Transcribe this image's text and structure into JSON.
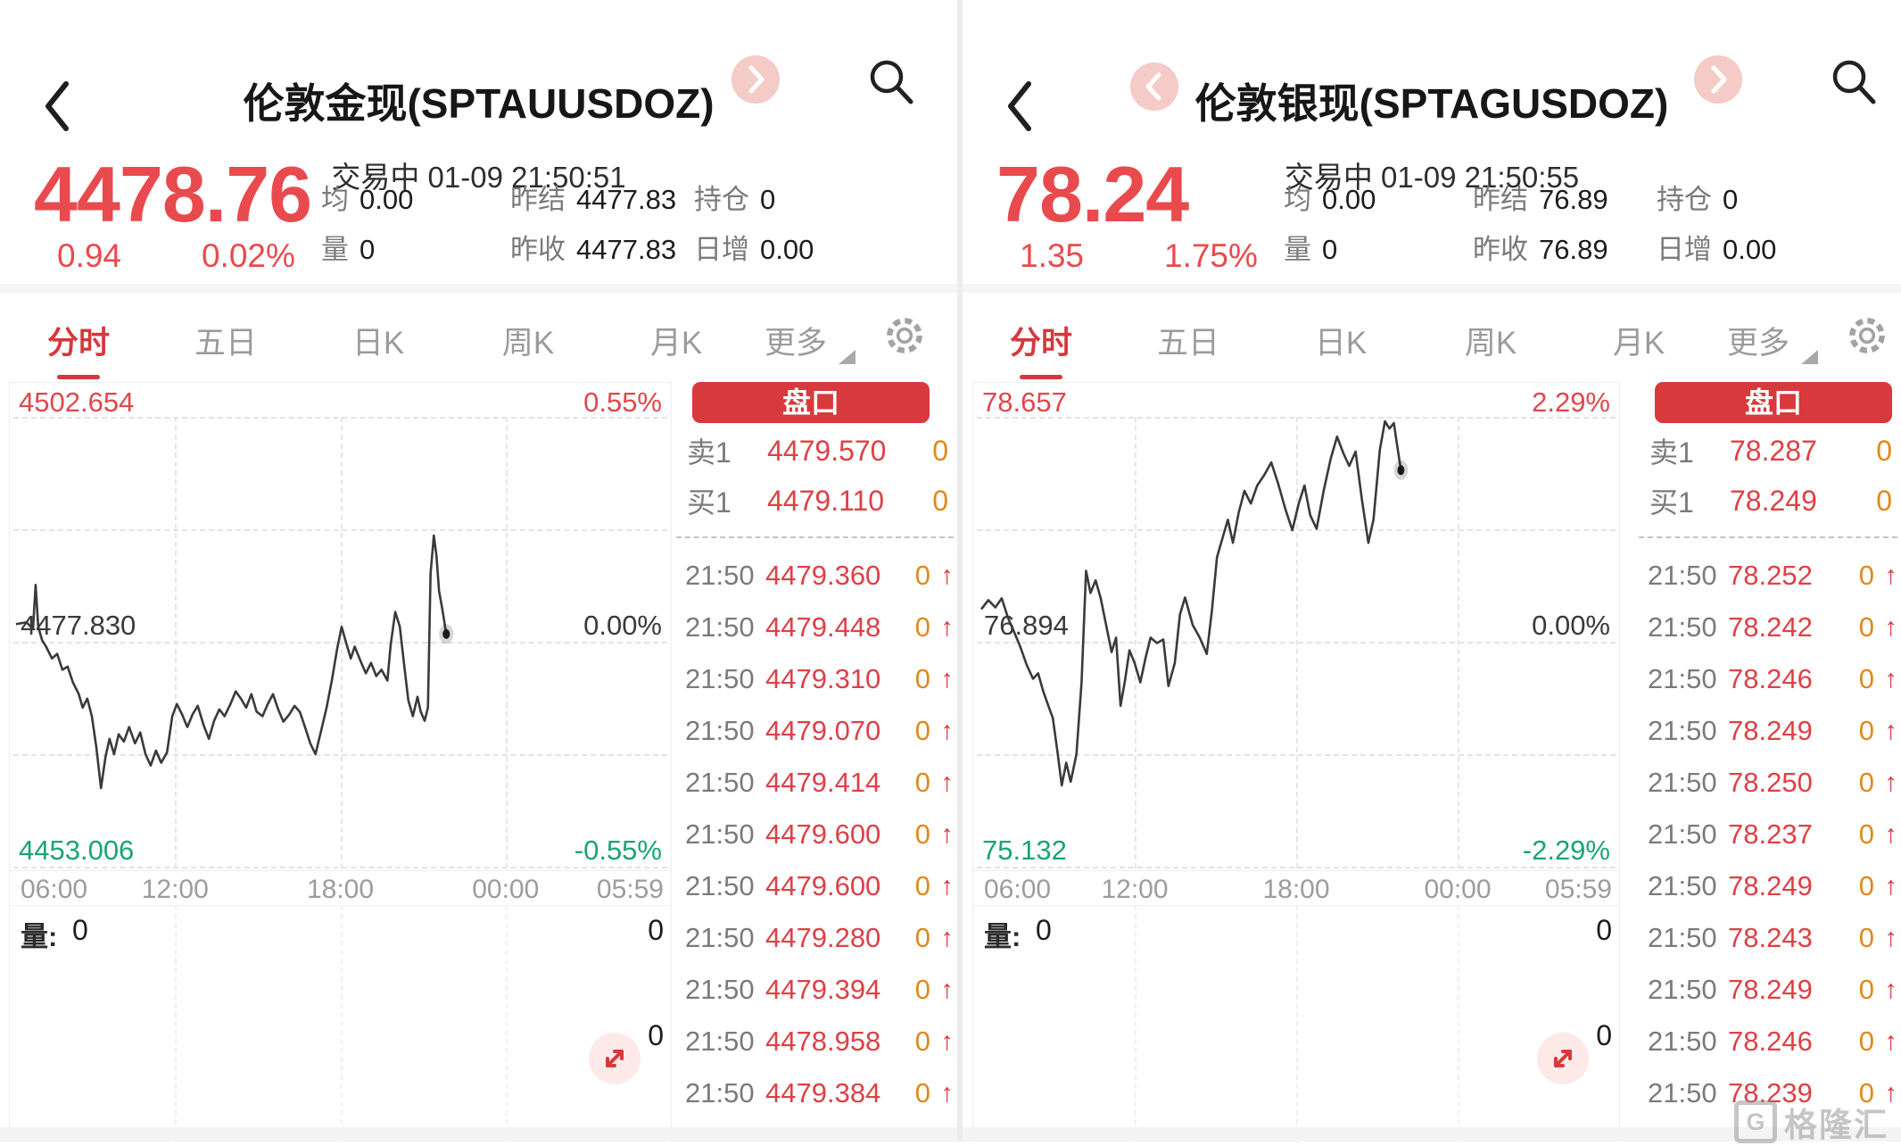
{
  "watermark": {
    "logo_letter": "G",
    "brand": "格隆汇"
  },
  "panels": [
    {
      "title": "伦敦金现(SPTAUUSDOZ)",
      "status": "交易中 01-09 21:50:51",
      "price": "4478.76",
      "change": "0.94",
      "change_pct": "0.02%",
      "stats": {
        "avg_label": "均",
        "avg": "0.00",
        "vol_label": "量",
        "vol": "0",
        "prev_settle_label": "昨结",
        "prev_settle": "4477.83",
        "prev_close_label": "昨收",
        "prev_close": "4477.83",
        "open_interest_label": "持仓",
        "open_interest": "0",
        "daily_add_label": "日增",
        "daily_add": "0.00"
      },
      "tabs": [
        "分时",
        "五日",
        "日K",
        "周K",
        "月K",
        "更多"
      ],
      "chart": {
        "high": "4502.654",
        "high_pct": "0.55%",
        "mid": "4477.830",
        "mid_pct": "0.00%",
        "low": "4453.006",
        "low_pct": "-0.55%",
        "times": [
          "06:00",
          "12:00",
          "18:00",
          "00:00",
          "05:59"
        ],
        "vol_label": "量:",
        "vol_value": "0",
        "vol_axis_top": "0",
        "vol_axis_bottom": "0",
        "line_points": [
          [
            0.004,
            0.459
          ],
          [
            0.02,
            0.455
          ],
          [
            0.03,
            0.47
          ],
          [
            0.034,
            0.372
          ],
          [
            0.038,
            0.465
          ],
          [
            0.044,
            0.495
          ],
          [
            0.05,
            0.509
          ],
          [
            0.059,
            0.535
          ],
          [
            0.067,
            0.525
          ],
          [
            0.075,
            0.56
          ],
          [
            0.083,
            0.553
          ],
          [
            0.091,
            0.588
          ],
          [
            0.1,
            0.614
          ],
          [
            0.106,
            0.644
          ],
          [
            0.113,
            0.624
          ],
          [
            0.12,
            0.663
          ],
          [
            0.127,
            0.733
          ],
          [
            0.134,
            0.822
          ],
          [
            0.141,
            0.752
          ],
          [
            0.147,
            0.713
          ],
          [
            0.154,
            0.747
          ],
          [
            0.161,
            0.703
          ],
          [
            0.169,
            0.719
          ],
          [
            0.177,
            0.687
          ],
          [
            0.186,
            0.723
          ],
          [
            0.194,
            0.699
          ],
          [
            0.202,
            0.747
          ],
          [
            0.21,
            0.772
          ],
          [
            0.218,
            0.739
          ],
          [
            0.226,
            0.766
          ],
          [
            0.235,
            0.743
          ],
          [
            0.243,
            0.663
          ],
          [
            0.25,
            0.636
          ],
          [
            0.258,
            0.659
          ],
          [
            0.266,
            0.687
          ],
          [
            0.274,
            0.659
          ],
          [
            0.282,
            0.64
          ],
          [
            0.291,
            0.683
          ],
          [
            0.299,
            0.713
          ],
          [
            0.307,
            0.673
          ],
          [
            0.315,
            0.648
          ],
          [
            0.323,
            0.663
          ],
          [
            0.332,
            0.636
          ],
          [
            0.34,
            0.608
          ],
          [
            0.348,
            0.624
          ],
          [
            0.356,
            0.644
          ],
          [
            0.364,
            0.614
          ],
          [
            0.372,
            0.653
          ],
          [
            0.381,
            0.663
          ],
          [
            0.389,
            0.636
          ],
          [
            0.397,
            0.614
          ],
          [
            0.405,
            0.648
          ],
          [
            0.413,
            0.675
          ],
          [
            0.422,
            0.659
          ],
          [
            0.43,
            0.64
          ],
          [
            0.438,
            0.653
          ],
          [
            0.446,
            0.687
          ],
          [
            0.454,
            0.723
          ],
          [
            0.462,
            0.747
          ],
          [
            0.471,
            0.693
          ],
          [
            0.479,
            0.644
          ],
          [
            0.487,
            0.584
          ],
          [
            0.495,
            0.515
          ],
          [
            0.502,
            0.465
          ],
          [
            0.509,
            0.501
          ],
          [
            0.516,
            0.535
          ],
          [
            0.522,
            0.509
          ],
          [
            0.531,
            0.541
          ],
          [
            0.539,
            0.568
          ],
          [
            0.547,
            0.545
          ],
          [
            0.555,
            0.574
          ],
          [
            0.563,
            0.56
          ],
          [
            0.572,
            0.584
          ],
          [
            0.577,
            0.505
          ],
          [
            0.584,
            0.432
          ],
          [
            0.591,
            0.465
          ],
          [
            0.598,
            0.554
          ],
          [
            0.604,
            0.628
          ],
          [
            0.611,
            0.663
          ],
          [
            0.618,
            0.62
          ],
          [
            0.623,
            0.653
          ],
          [
            0.629,
            0.673
          ],
          [
            0.634,
            0.644
          ],
          [
            0.638,
            0.347
          ],
          [
            0.643,
            0.263
          ],
          [
            0.647,
            0.307
          ],
          [
            0.651,
            0.386
          ],
          [
            0.656,
            0.426
          ],
          [
            0.662,
            0.481
          ]
        ]
      },
      "orderbook": {
        "title": "盘口",
        "ask_label": "卖1",
        "ask_price": "4479.570",
        "ask_qty": "0",
        "bid_label": "买1",
        "bid_price": "4479.110",
        "bid_qty": "0",
        "arrow": "↑",
        "ticks": [
          {
            "t": "21:50",
            "p": "4479.360",
            "v": "0"
          },
          {
            "t": "21:50",
            "p": "4479.448",
            "v": "0"
          },
          {
            "t": "21:50",
            "p": "4479.310",
            "v": "0"
          },
          {
            "t": "21:50",
            "p": "4479.070",
            "v": "0"
          },
          {
            "t": "21:50",
            "p": "4479.414",
            "v": "0"
          },
          {
            "t": "21:50",
            "p": "4479.600",
            "v": "0"
          },
          {
            "t": "21:50",
            "p": "4479.600",
            "v": "0"
          },
          {
            "t": "21:50",
            "p": "4479.280",
            "v": "0"
          },
          {
            "t": "21:50",
            "p": "4479.394",
            "v": "0"
          },
          {
            "t": "21:50",
            "p": "4478.958",
            "v": "0"
          },
          {
            "t": "21:50",
            "p": "4479.384",
            "v": "0"
          }
        ]
      }
    },
    {
      "title": "伦敦银现(SPTAGUSDOZ)",
      "status": "交易中 01-09 21:50:55",
      "price": "78.24",
      "change": "1.35",
      "change_pct": "1.75%",
      "stats": {
        "avg_label": "均",
        "avg": "0.00",
        "vol_label": "量",
        "vol": "0",
        "prev_settle_label": "昨结",
        "prev_settle": "76.89",
        "prev_close_label": "昨收",
        "prev_close": "76.89",
        "open_interest_label": "持仓",
        "open_interest": "0",
        "daily_add_label": "日增",
        "daily_add": "0.00"
      },
      "tabs": [
        "分时",
        "五日",
        "日K",
        "周K",
        "月K",
        "更多"
      ],
      "chart": {
        "high": "78.657",
        "high_pct": "2.29%",
        "mid": "76.894",
        "mid_pct": "0.00%",
        "low": "75.132",
        "low_pct": "-2.29%",
        "times": [
          "06:00",
          "12:00",
          "18:00",
          "00:00",
          "05:59"
        ],
        "vol_label": "量:",
        "vol_value": "0",
        "vol_axis_top": "0",
        "vol_axis_bottom": "0",
        "line_points": [
          [
            0.007,
            0.426
          ],
          [
            0.018,
            0.406
          ],
          [
            0.029,
            0.422
          ],
          [
            0.039,
            0.402
          ],
          [
            0.049,
            0.446
          ],
          [
            0.058,
            0.475
          ],
          [
            0.068,
            0.509
          ],
          [
            0.078,
            0.549
          ],
          [
            0.088,
            0.58
          ],
          [
            0.096,
            0.568
          ],
          [
            0.104,
            0.608
          ],
          [
            0.113,
            0.644
          ],
          [
            0.119,
            0.667
          ],
          [
            0.126,
            0.739
          ],
          [
            0.133,
            0.816
          ],
          [
            0.14,
            0.766
          ],
          [
            0.147,
            0.808
          ],
          [
            0.156,
            0.747
          ],
          [
            0.164,
            0.588
          ],
          [
            0.171,
            0.341
          ],
          [
            0.178,
            0.39
          ],
          [
            0.186,
            0.362
          ],
          [
            0.194,
            0.402
          ],
          [
            0.203,
            0.465
          ],
          [
            0.211,
            0.521
          ],
          [
            0.218,
            0.489
          ],
          [
            0.225,
            0.64
          ],
          [
            0.232,
            0.584
          ],
          [
            0.239,
            0.517
          ],
          [
            0.247,
            0.545
          ],
          [
            0.256,
            0.588
          ],
          [
            0.264,
            0.535
          ],
          [
            0.272,
            0.489
          ],
          [
            0.282,
            0.501
          ],
          [
            0.292,
            0.493
          ],
          [
            0.3,
            0.596
          ],
          [
            0.31,
            0.545
          ],
          [
            0.318,
            0.438
          ],
          [
            0.326,
            0.4
          ],
          [
            0.338,
            0.461
          ],
          [
            0.349,
            0.489
          ],
          [
            0.36,
            0.525
          ],
          [
            0.368,
            0.43
          ],
          [
            0.376,
            0.311
          ],
          [
            0.385,
            0.267
          ],
          [
            0.393,
            0.228
          ],
          [
            0.401,
            0.279
          ],
          [
            0.41,
            0.212
          ],
          [
            0.419,
            0.164
          ],
          [
            0.429,
            0.192
          ],
          [
            0.439,
            0.152
          ],
          [
            0.45,
            0.129
          ],
          [
            0.461,
            0.101
          ],
          [
            0.472,
            0.149
          ],
          [
            0.483,
            0.204
          ],
          [
            0.494,
            0.251
          ],
          [
            0.504,
            0.192
          ],
          [
            0.513,
            0.152
          ],
          [
            0.522,
            0.218
          ],
          [
            0.532,
            0.248
          ],
          [
            0.543,
            0.164
          ],
          [
            0.554,
            0.093
          ],
          [
            0.564,
            0.044
          ],
          [
            0.574,
            0.081
          ],
          [
            0.583,
            0.109
          ],
          [
            0.593,
            0.077
          ],
          [
            0.603,
            0.184
          ],
          [
            0.613,
            0.279
          ],
          [
            0.621,
            0.228
          ],
          [
            0.631,
            0.073
          ],
          [
            0.639,
            0.01
          ],
          [
            0.646,
            0.026
          ],
          [
            0.653,
            0.014
          ],
          [
            0.657,
            0.053
          ],
          [
            0.664,
            0.118
          ]
        ]
      },
      "orderbook": {
        "title": "盘口",
        "ask_label": "卖1",
        "ask_price": "78.287",
        "ask_qty": "0",
        "bid_label": "买1",
        "bid_price": "78.249",
        "bid_qty": "0",
        "arrow": "↑",
        "ticks": [
          {
            "t": "21:50",
            "p": "78.252",
            "v": "0"
          },
          {
            "t": "21:50",
            "p": "78.242",
            "v": "0"
          },
          {
            "t": "21:50",
            "p": "78.246",
            "v": "0"
          },
          {
            "t": "21:50",
            "p": "78.249",
            "v": "0"
          },
          {
            "t": "21:50",
            "p": "78.250",
            "v": "0"
          },
          {
            "t": "21:50",
            "p": "78.237",
            "v": "0"
          },
          {
            "t": "21:50",
            "p": "78.249",
            "v": "0"
          },
          {
            "t": "21:50",
            "p": "78.243",
            "v": "0"
          },
          {
            "t": "21:50",
            "p": "78.249",
            "v": "0"
          },
          {
            "t": "21:50",
            "p": "78.246",
            "v": "0"
          },
          {
            "t": "21:50",
            "p": "78.239",
            "v": "0"
          }
        ]
      }
    }
  ]
}
